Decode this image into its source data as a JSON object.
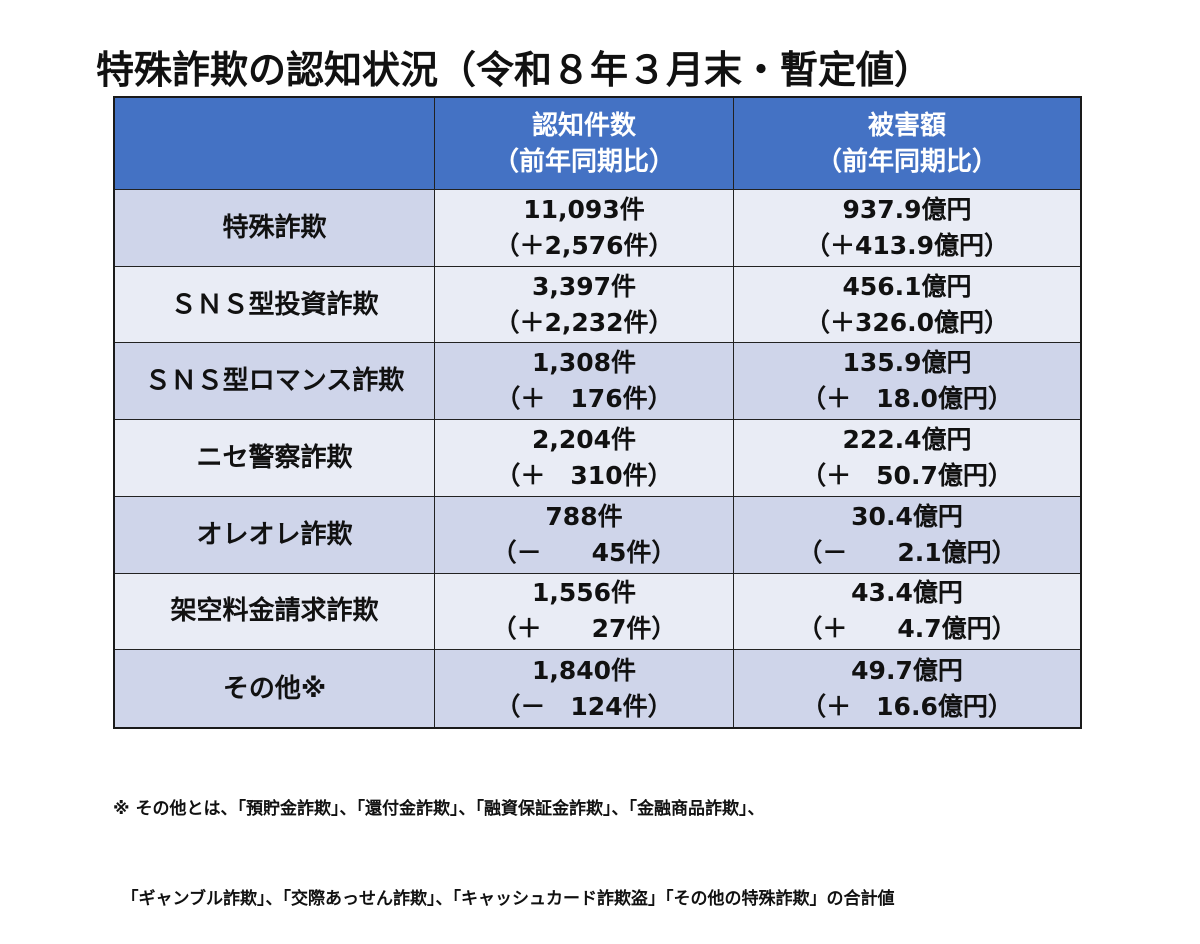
{
  "title": "特殊詐欺の認知状況（令和８年３月末・暫定値）",
  "table": {
    "headers": [
      {
        "line1": "",
        "line2": ""
      },
      {
        "line1": "認知件数",
        "line2": "（前年同期比）"
      },
      {
        "line1": "被害額",
        "line2": "（前年同期比）"
      }
    ],
    "rows": [
      {
        "label": "特殊詐欺",
        "count": "11,093件",
        "count_diff": "（＋2,576件）",
        "amount": "937.9億円",
        "amount_diff": "（＋413.9億円）"
      },
      {
        "label": "ＳＮＳ型投資詐欺",
        "count": "3,397件",
        "count_diff": "（＋2,232件）",
        "amount": "456.1億円",
        "amount_diff": "（＋326.0億円）"
      },
      {
        "label": "ＳＮＳ型ロマンス詐欺",
        "count": "1,308件",
        "count_diff": "（＋　176件）",
        "amount": "135.9億円",
        "amount_diff": "（＋　18.0億円）"
      },
      {
        "label": "ニセ警察詐欺",
        "count": "2,204件",
        "count_diff": "（＋　310件）",
        "amount": "222.4億円",
        "amount_diff": "（＋　50.7億円）"
      },
      {
        "label": "オレオレ詐欺",
        "count": "788件",
        "count_diff": "（－　　45件）",
        "amount": "30.4億円",
        "amount_diff": "（－　　2.1億円）"
      },
      {
        "label": "架空料金請求詐欺",
        "count": "1,556件",
        "count_diff": "（＋　　27件）",
        "amount": "43.4億円",
        "amount_diff": "（＋　　4.7億円）"
      },
      {
        "label": "その他※",
        "count": "1,840件",
        "count_diff": "（－　124件）",
        "amount": "49.7億円",
        "amount_diff": "（＋　16.6億円）"
      }
    ]
  },
  "note": {
    "line1": "※ その他とは、「預貯金詐欺」、「還付金詐欺」、「融資保証金詐欺」、「金融商品詐欺」、",
    "line2": "　「ギャンブル詐欺」、「交際あっせん詐欺」、「キャッシュカード詐欺盗」「その他の特殊詐欺」の合計値"
  }
}
